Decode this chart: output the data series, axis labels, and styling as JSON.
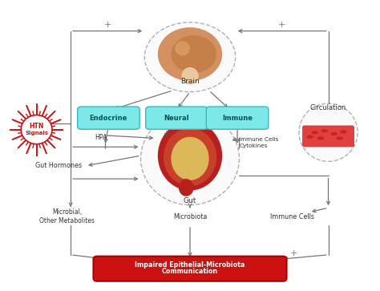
{
  "bg_color": "#ffffff",
  "arrow_color": "#777777",
  "text_color": "#333333",
  "cyan_fill": "#7de8e8",
  "cyan_edge": "#3ab8c0",
  "red_box_fill": "#cc1111",
  "red_box_edge": "#aa0000",
  "brain_fill": "#d49060",
  "gut_fill_outer": "#c0392b",
  "gut_fill_inner": "#e8c87a",
  "circ_fill": "#e05050",
  "htn_color": "#cc1111",
  "dashed_color": "#bbbbbb",
  "plus_color": "#777777",
  "labels": {
    "brain": "Brain",
    "gut": "Gut",
    "circulation": "Circulation",
    "htn1": "HTN",
    "htn2": "Signals",
    "endocrine": "Endocrine",
    "neural": "Neural",
    "immune": "Immune",
    "hpa": "HPA",
    "immune_cells_cytokines": "Immune Cells\nCytokines",
    "gut_hormones": "Gut Hormones",
    "microbial": "Microbial,\nOther Metabolites",
    "microbiota": "Microbiota",
    "immune_cells": "Immune Cells",
    "impaired1": "Impaired Epithelial-Microbiota",
    "impaired2": "Communication"
  }
}
